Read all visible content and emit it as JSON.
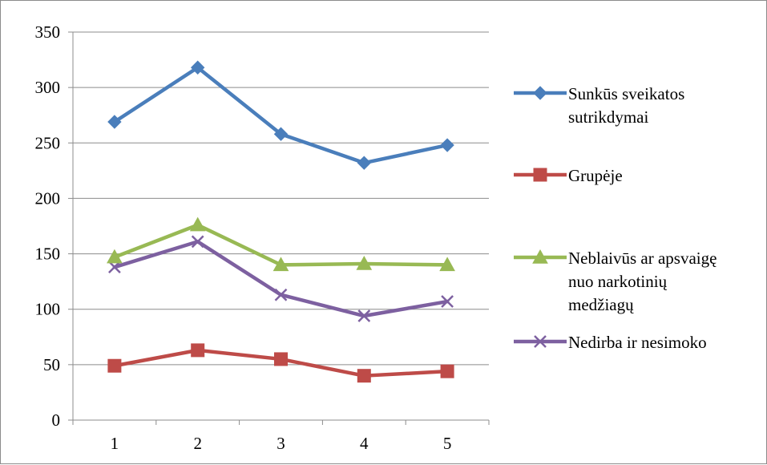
{
  "chart_data": {
    "type": "line",
    "title": "",
    "xlabel": "",
    "ylabel": "",
    "categories": [
      "1",
      "2",
      "3",
      "4",
      "5"
    ],
    "ylim": [
      0,
      350
    ],
    "yticks": [
      0,
      50,
      100,
      150,
      200,
      250,
      300,
      350
    ],
    "grid": true,
    "legend_position": "right",
    "series": [
      {
        "name_lines": [
          "Sunkūs sveikatos",
          "sutrikdymai"
        ],
        "values": [
          269,
          318,
          258,
          232,
          248
        ],
        "color": "#4a7ebb",
        "marker": "diamond"
      },
      {
        "name_lines": [
          "Grupėje"
        ],
        "values": [
          49,
          63,
          55,
          40,
          44
        ],
        "color": "#be4b48",
        "marker": "square"
      },
      {
        "name_lines": [
          "Neblaivūs ar apsvaigę",
          "nuo narkotinių",
          "medžiagų"
        ],
        "values": [
          147,
          176,
          140,
          141,
          140
        ],
        "color": "#98b954",
        "marker": "triangle"
      },
      {
        "name_lines": [
          "Nedirba ir nesimoko"
        ],
        "values": [
          138,
          161,
          113,
          94,
          107
        ],
        "color": "#7d60a0",
        "marker": "x"
      }
    ]
  }
}
